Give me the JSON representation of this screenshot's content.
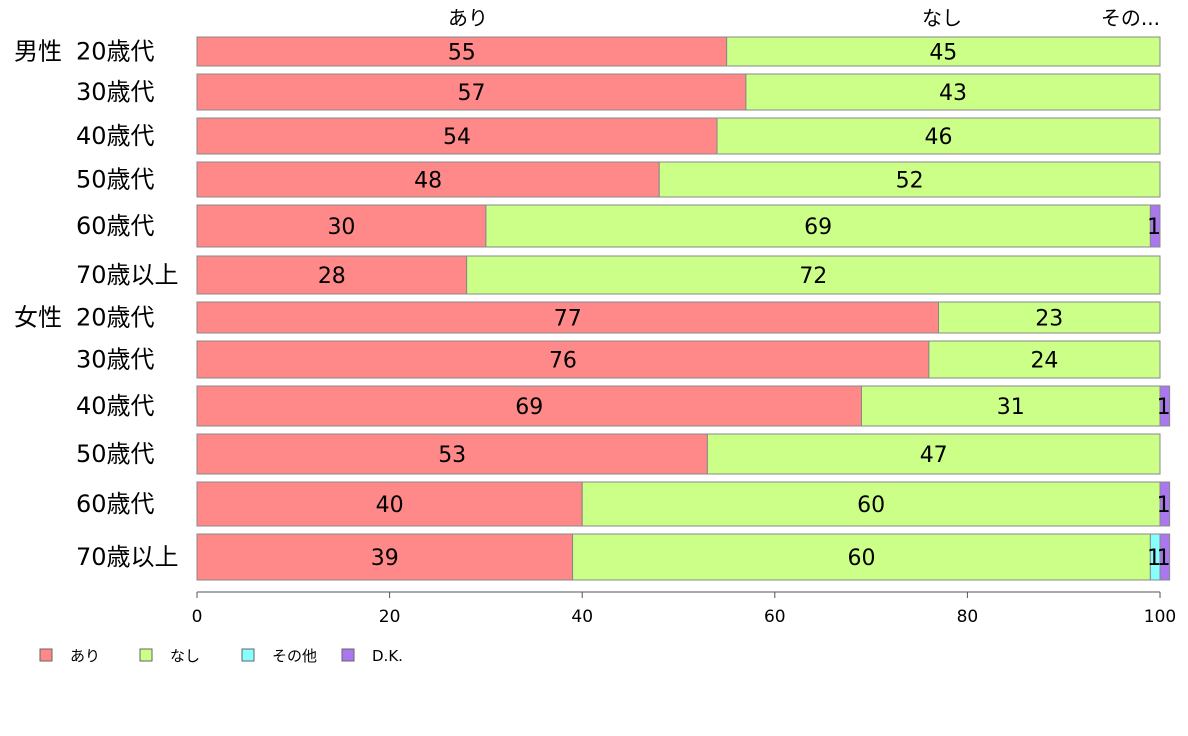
{
  "chart_data": {
    "type": "bar",
    "orientation": "horizontal",
    "stacked": true,
    "xlim": [
      0,
      100
    ],
    "xticks": [
      "0",
      "20",
      "40",
      "60",
      "80",
      "100"
    ],
    "column_headers": [
      "あり",
      "なし",
      "その..."
    ],
    "categories": [
      {
        "group": "男性",
        "label": "20歳代"
      },
      {
        "group": "",
        "label": "30歳代"
      },
      {
        "group": "",
        "label": "40歳代"
      },
      {
        "group": "",
        "label": "50歳代"
      },
      {
        "group": "",
        "label": "60歳代"
      },
      {
        "group": "",
        "label": "70歳以上"
      },
      {
        "group": "女性",
        "label": "20歳代"
      },
      {
        "group": "",
        "label": "30歳代"
      },
      {
        "group": "",
        "label": "40歳代"
      },
      {
        "group": "",
        "label": "50歳代"
      },
      {
        "group": "",
        "label": "60歳代"
      },
      {
        "group": "",
        "label": "70歳以上"
      }
    ],
    "series": [
      {
        "name": "あり",
        "color": "#ff8888",
        "values": [
          55,
          57,
          54,
          48,
          30,
          28,
          77,
          76,
          69,
          53,
          40,
          39
        ]
      },
      {
        "name": "なし",
        "color": "#ccff88",
        "values": [
          45,
          43,
          46,
          52,
          69,
          72,
          23,
          24,
          31,
          47,
          60,
          60
        ]
      },
      {
        "name": "その他",
        "color": "#88ffff",
        "values": [
          0,
          0,
          0,
          0,
          0,
          0,
          0,
          0,
          0,
          0,
          0,
          1
        ]
      },
      {
        "name": "D.K.",
        "color": "#aa77ee",
        "values": [
          0,
          0,
          0,
          0,
          1,
          0,
          0,
          0,
          1,
          0,
          1,
          1
        ]
      }
    ],
    "legend_position": "bottom-left",
    "grid": false
  }
}
